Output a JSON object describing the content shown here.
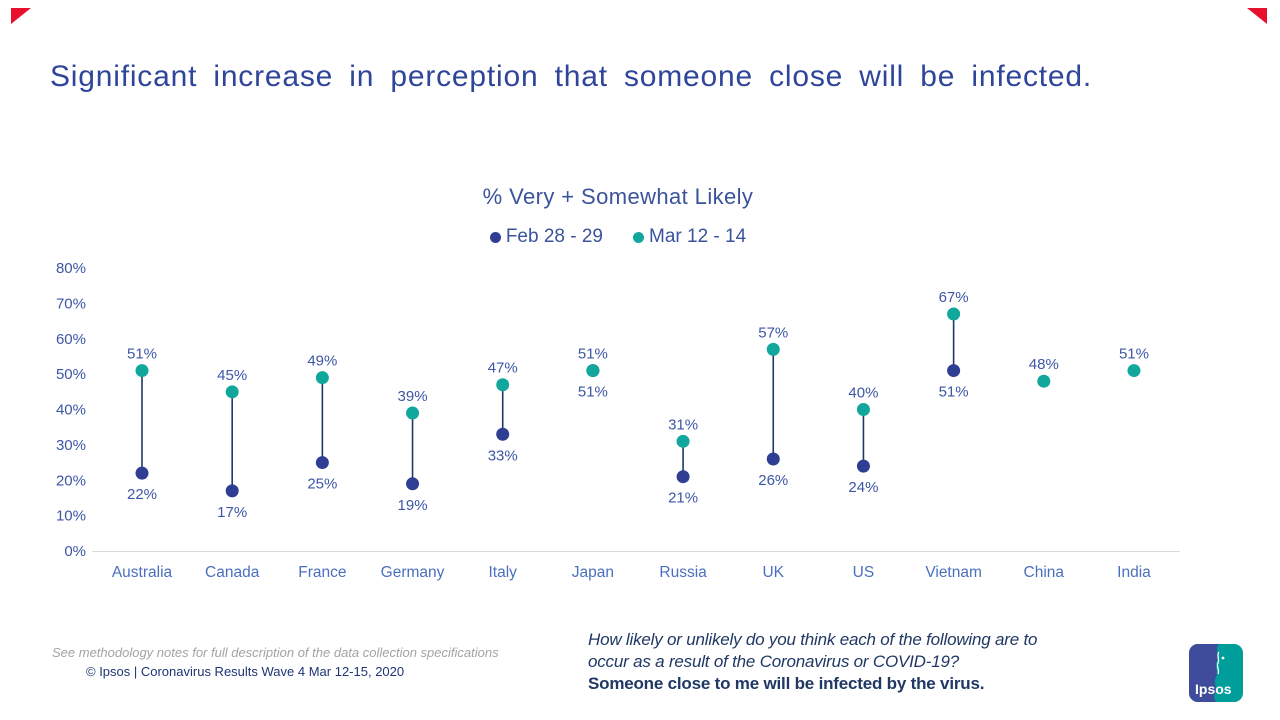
{
  "slide": {
    "title": "Significant increase in perception that someone close will be infected.",
    "accent_color": "#E8112D",
    "title_color": "#2E459A"
  },
  "chart_data": {
    "type": "scatter",
    "subtype": "dumbbell-dot-plot",
    "title": "% Very + Somewhat Likely",
    "legend": [
      {
        "label": "Feb 28 - 29",
        "color": "#2F3E93"
      },
      {
        "label": "Mar 12 - 14",
        "color": "#12A79D"
      }
    ],
    "legend_position": "top",
    "grid": false,
    "categories": [
      "Australia",
      "Canada",
      "France",
      "Germany",
      "Italy",
      "Japan",
      "Russia",
      "UK",
      "US",
      "Vietnam",
      "China",
      "India"
    ],
    "series": [
      {
        "name": "Feb 28 - 29",
        "color": "#2F3E93",
        "values": [
          22,
          17,
          25,
          19,
          33,
          51,
          21,
          26,
          24,
          51,
          null,
          null
        ]
      },
      {
        "name": "Mar 12 - 14",
        "color": "#12A79D",
        "values": [
          51,
          45,
          49,
          39,
          47,
          51,
          31,
          57,
          40,
          67,
          48,
          51
        ]
      }
    ],
    "ylim": [
      0,
      80
    ],
    "ytick_step": 10,
    "ytick_labels": [
      "0%",
      "10%",
      "20%",
      "30%",
      "40%",
      "50%",
      "60%",
      "70%",
      "80%"
    ],
    "value_suffix": "%",
    "connector_color": "#1F3864",
    "label_color": "#3D56A6",
    "tick_color": "#3D56A6",
    "category_color": "#4A6FBE",
    "axis_line_color": "#D9D9D9"
  },
  "footer": {
    "methodology_note": "See methodology notes for full description of the data collection specifications",
    "copyright": "© Ipsos | Coronavirus Results Wave 4 Mar 12-15, 2020",
    "question_line1": "How likely or unlikely do you think each of the following are to",
    "question_line2": "occur as a result of the Coronavirus or COVID-19?",
    "question_bold": "Someone close to me will be infected by the virus.",
    "logo_text": "Ipsos",
    "logo_blue": "#3F4C9B",
    "logo_teal": "#009E9B"
  }
}
